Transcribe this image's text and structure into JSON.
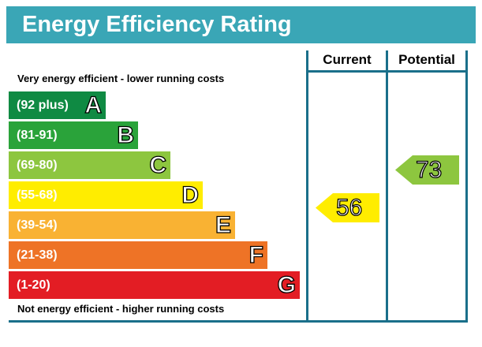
{
  "title": "Energy Efficiency Rating",
  "columns": {
    "current": "Current",
    "potential": "Potential"
  },
  "top_caption": "Very energy efficient - lower running costs",
  "bottom_caption": "Not energy efficient - higher running costs",
  "colors": {
    "header": "#3aa6b6",
    "frame": "#1a6f8a",
    "A": "#0f8a43",
    "B": "#2aa33a",
    "C": "#8dc63f",
    "D": "#ffed00",
    "E": "#f9b233",
    "F": "#ee7326",
    "G": "#e31d24",
    "current_arrow": "#ffed00",
    "potential_arrow": "#8dc63f"
  },
  "chart_data": {
    "type": "bar",
    "title": "Energy Efficiency Rating",
    "bands": [
      {
        "letter": "A",
        "range": "(92 plus)",
        "min": 92,
        "max": 100
      },
      {
        "letter": "B",
        "range": "(81-91)",
        "min": 81,
        "max": 91
      },
      {
        "letter": "C",
        "range": "(69-80)",
        "min": 69,
        "max": 80
      },
      {
        "letter": "D",
        "range": "(55-68)",
        "min": 55,
        "max": 68
      },
      {
        "letter": "E",
        "range": "(39-54)",
        "min": 39,
        "max": 54
      },
      {
        "letter": "F",
        "range": "(21-38)",
        "min": 21,
        "max": 38
      },
      {
        "letter": "G",
        "range": "(1-20)",
        "min": 1,
        "max": 20
      }
    ],
    "ratings": {
      "current": {
        "value": 56,
        "band": "D"
      },
      "potential": {
        "value": 73,
        "band": "C"
      }
    }
  }
}
